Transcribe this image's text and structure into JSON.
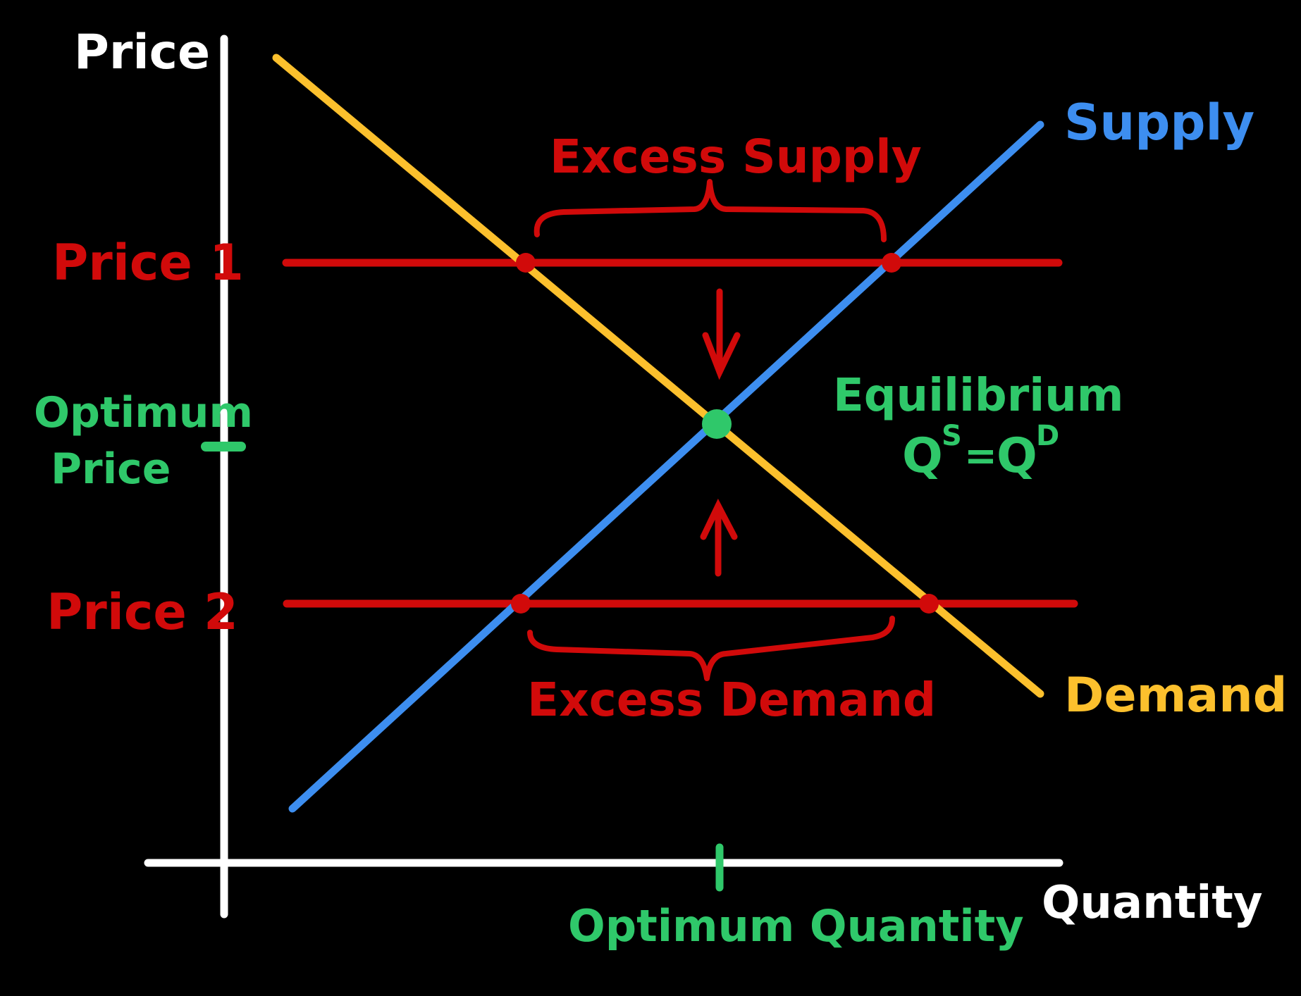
{
  "colors": {
    "background": "#000000",
    "axis": "#ffffff",
    "supply": "#3d8ef0",
    "demand": "#fcc02d",
    "price_line": "#d10a0a",
    "equilibrium": "#2fc86a"
  },
  "axes": {
    "y_label": "Price",
    "x_label": "Quantity"
  },
  "curves": {
    "supply_label": "Supply",
    "demand_label": "Demand"
  },
  "price_levels": {
    "price1_label": "Price 1",
    "price2_label": "Price 2",
    "optimum_price_line1": "Optimum",
    "optimum_price_line2": "Price",
    "optimum_quantity_label": "Optimum Quantity"
  },
  "annotations": {
    "excess_supply": "Excess Supply",
    "excess_demand": "Excess Demand",
    "equilibrium": "Equilibrium",
    "equilibrium_q": "Q",
    "equilibrium_s": "S",
    "equilibrium_eq": "=",
    "equilibrium_d": "D"
  }
}
